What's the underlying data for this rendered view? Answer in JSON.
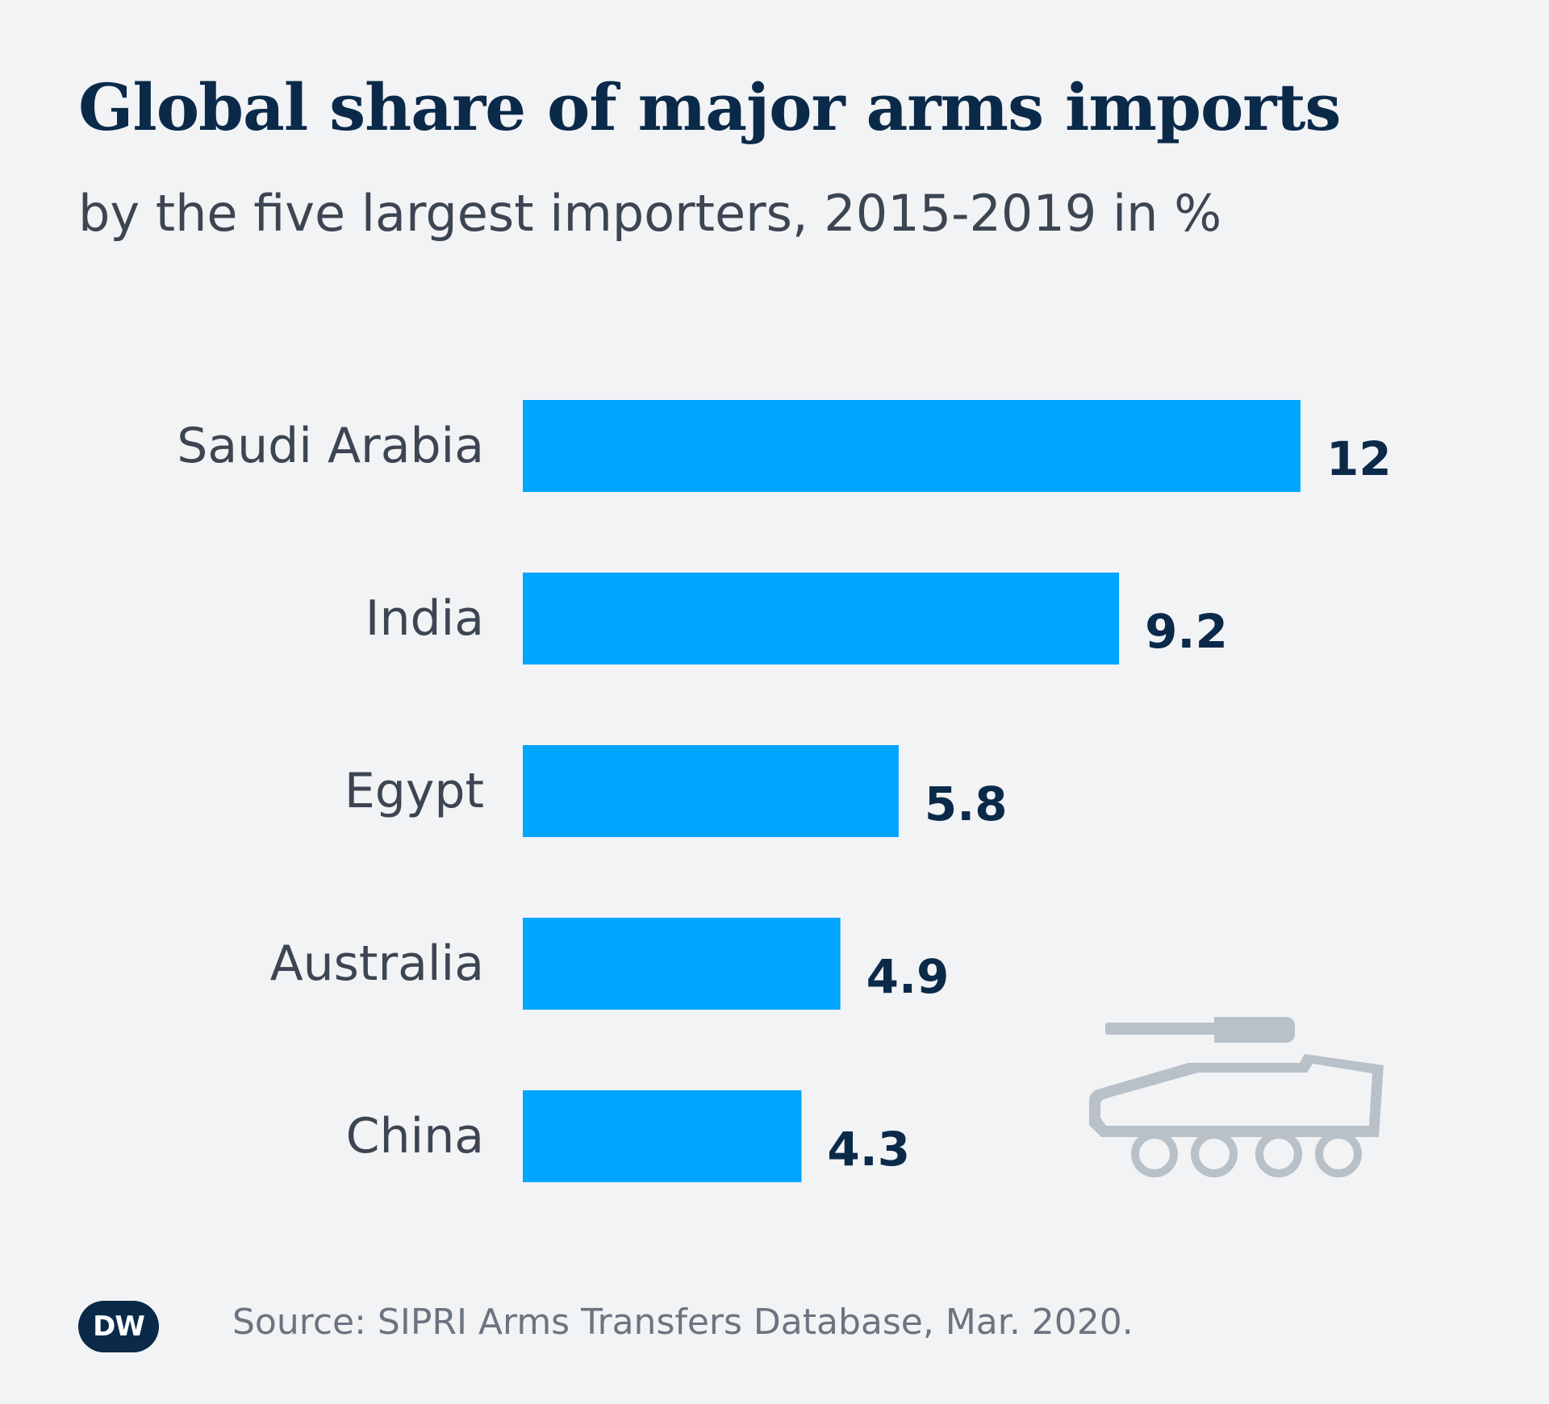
{
  "title": "Global share of major arms imports",
  "subtitle": "by the five largest importers, 2015-2019 in %",
  "source": "Source: SIPRI Arms Transfers Database, Mar. 2020.",
  "logo": {
    "text": "DW"
  },
  "icons": {
    "decoration": "tank-icon"
  },
  "colors": {
    "bar": "#00a5ff",
    "title": "#0b2a4a",
    "tank": "#b8c0c8"
  },
  "chart_data": {
    "type": "bar",
    "orientation": "horizontal",
    "title": "Global share of major arms imports",
    "subtitle": "by the five largest importers, 2015-2019 in %",
    "categories": [
      "Saudi Arabia",
      "India",
      "Egypt",
      "Australia",
      "China"
    ],
    "values": [
      12,
      9.2,
      5.8,
      4.9,
      4.3
    ],
    "value_labels": [
      "12",
      "9.2",
      "5.8",
      "4.9",
      "4.3"
    ],
    "xlabel": "",
    "ylabel": "",
    "xlim": [
      0,
      12
    ],
    "grid": false,
    "legend": "none"
  }
}
